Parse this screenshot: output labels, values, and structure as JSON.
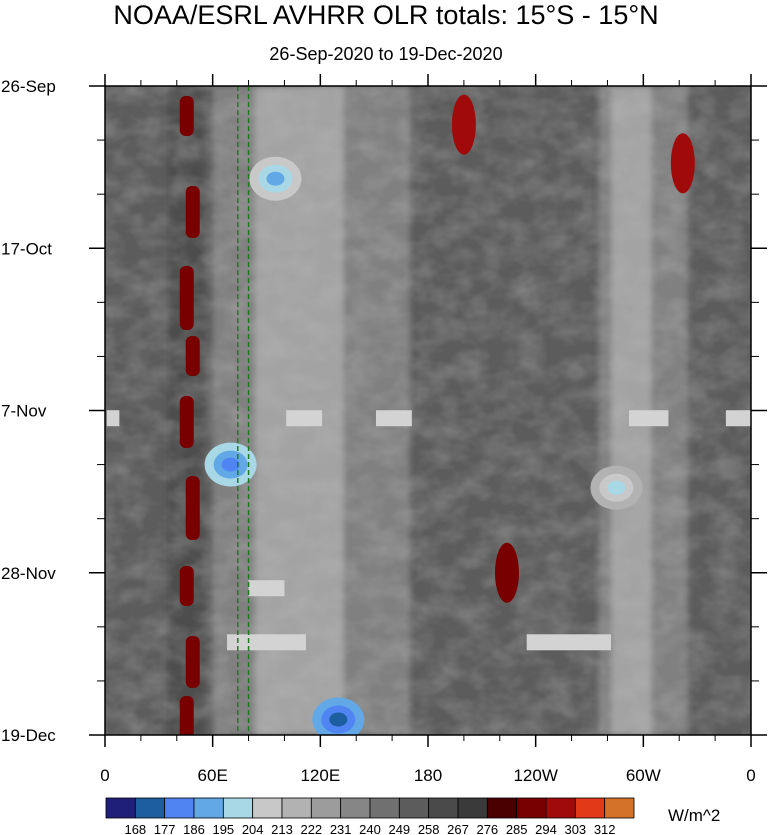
{
  "header": {
    "title": "NOAA/ESRL AVHRR OLR totals: 15°S - 15°N",
    "subtitle": "26-Sep-2020 to 19-Dec-2020"
  },
  "chart_data": {
    "type": "heatmap",
    "title": "NOAA/ESRL AVHRR OLR totals: 15°S - 15°N",
    "subtitle": "26-Sep-2020 to 19-Dec-2020",
    "xlabel": "",
    "ylabel": "",
    "x_range_lon_east": [
      0,
      360
    ],
    "x_ticks": [
      {
        "lon": 0,
        "label": "0"
      },
      {
        "lon": 60,
        "label": "60E"
      },
      {
        "lon": 120,
        "label": "120E"
      },
      {
        "lon": 180,
        "label": "180"
      },
      {
        "lon": 240,
        "label": "120W"
      },
      {
        "lon": 300,
        "label": "60W"
      },
      {
        "lon": 360,
        "label": "0"
      }
    ],
    "y_range_dates": [
      "2020-09-26",
      "2020-12-19"
    ],
    "y_ticks": [
      {
        "date": "2020-09-26",
        "label": "26-Sep"
      },
      {
        "date": "2020-10-17",
        "label": "17-Oct"
      },
      {
        "date": "2020-11-07",
        "label": "7-Nov"
      },
      {
        "date": "2020-11-28",
        "label": "28-Nov"
      },
      {
        "date": "2020-12-19",
        "label": "19-Dec"
      }
    ],
    "y_minor_tick_interval_days": 7,
    "colorbar": {
      "units": "W/m^2",
      "levels": [
        168,
        177,
        186,
        195,
        204,
        213,
        222,
        231,
        240,
        249,
        258,
        267,
        276,
        285,
        294,
        303,
        312
      ],
      "colors": [
        "#1f1f7a",
        "#1d5ea0",
        "#4f84f2",
        "#62a8e6",
        "#a8d8e6",
        "#c8c8c8",
        "#b2b2b2",
        "#9c9c9c",
        "#868686",
        "#707070",
        "#5c5c5c",
        "#4a4a4a",
        "#3a3a3a",
        "#4a0000",
        "#780000",
        "#a00a0a",
        "#e23a18",
        "#d5722a"
      ]
    },
    "reference_lines_lon": [
      74,
      80
    ],
    "reference_line_color": "#1f7a1f",
    "missing_data_color": "#d3d3d3",
    "missing_data_segments": [
      {
        "lon": [
          1,
          8
        ],
        "date": "2020-11-08"
      },
      {
        "lon": [
          101,
          121
        ],
        "date": "2020-11-08"
      },
      {
        "lon": [
          151,
          171
        ],
        "date": "2020-11-08"
      },
      {
        "lon": [
          292,
          314
        ],
        "date": "2020-11-08"
      },
      {
        "lon": [
          346,
          360
        ],
        "date": "2020-11-08"
      },
      {
        "lon": [
          80,
          100
        ],
        "date": "2020-11-30"
      },
      {
        "lon": [
          68,
          112
        ],
        "date": "2020-12-07"
      },
      {
        "lon": [
          235,
          282
        ],
        "date": "2020-12-07"
      }
    ],
    "field_features": [
      {
        "kind": "convective_band",
        "lon": [
          60,
          170
        ],
        "dates": [
          "2020-09-26",
          "2020-12-19"
        ],
        "level": "low"
      },
      {
        "kind": "convective_band",
        "lon": [
          275,
          325
        ],
        "dates": [
          "2020-09-26",
          "2020-12-19"
        ],
        "level": "low"
      },
      {
        "kind": "dry_band",
        "lon": [
          35,
          55
        ],
        "dates": [
          "2020-09-26",
          "2020-12-19"
        ],
        "level": "high"
      },
      {
        "kind": "min_cluster",
        "lon": 95,
        "date": "2020-10-08",
        "value": 186
      },
      {
        "kind": "min_cluster",
        "lon": 70,
        "date": "2020-11-14",
        "value": 177
      },
      {
        "kind": "min_cluster",
        "lon": 130,
        "date": "2020-12-17",
        "value": 168
      },
      {
        "kind": "min_cluster",
        "lon": 285,
        "date": "2020-11-17",
        "value": 195
      },
      {
        "kind": "max_cluster",
        "lon": 200,
        "date": "2020-10-01",
        "value": 294
      },
      {
        "kind": "max_cluster",
        "lon": 322,
        "date": "2020-10-06",
        "value": 294
      },
      {
        "kind": "max_cluster",
        "lon": 224,
        "date": "2020-11-28",
        "value": 285
      }
    ]
  }
}
